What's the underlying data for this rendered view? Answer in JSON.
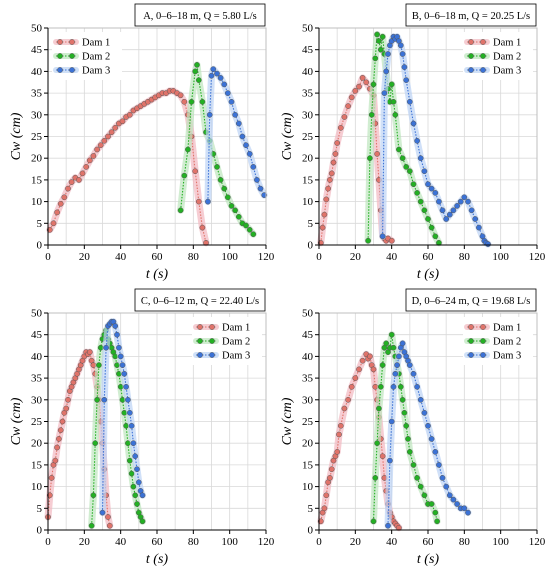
{
  "colors": {
    "Dam 1": "#e0736a",
    "Dam 2": "#23b023",
    "Dam 3": "#3b72d6",
    "grid": "#d9d9d9",
    "axis": "#000000",
    "band_Dam 1": "#f2b8c0",
    "band_Dam 2": "#bde6bd",
    "band_Dam 3": "#bcd3f5"
  },
  "chart_data": [
    {
      "type": "scatter",
      "title": "A, 0–6–18 m, Q = 5.80 L/s",
      "xlabel": "t (s)",
      "ylabel": "Cw (cm)",
      "xlim": [
        0,
        120
      ],
      "ylim": [
        0,
        50
      ],
      "xticks": [
        0,
        20,
        40,
        60,
        80,
        100,
        120
      ],
      "yticks": [
        0,
        5,
        10,
        15,
        20,
        25,
        30,
        35,
        40,
        45,
        50
      ],
      "grid": true,
      "legend": "top-left",
      "series": [
        {
          "name": "Dam 1",
          "x": [
            1,
            3,
            5,
            7,
            9,
            11,
            13,
            15,
            17,
            19,
            21,
            23,
            25,
            27,
            29,
            31,
            33,
            35,
            37,
            39,
            41,
            43,
            45,
            47,
            49,
            51,
            53,
            55,
            57,
            59,
            61,
            63,
            65,
            67,
            69,
            71,
            73,
            75,
            77,
            79,
            81,
            83,
            85,
            87
          ],
          "y": [
            3.5,
            5,
            7.5,
            9.5,
            11,
            13,
            14.5,
            15.5,
            15,
            16.5,
            18,
            19.5,
            20.5,
            22,
            23,
            24,
            25,
            26,
            27,
            28,
            28.5,
            29.5,
            30,
            31,
            31.5,
            32,
            32.5,
            33,
            33.5,
            34,
            34.5,
            35,
            35,
            35.5,
            35.5,
            35,
            34.5,
            33,
            30,
            25,
            17,
            10,
            4,
            0.5
          ]
        },
        {
          "name": "Dam 2",
          "x": [
            73,
            75,
            77,
            79,
            81,
            82,
            83,
            85,
            87,
            89,
            91,
            93,
            95,
            97,
            99,
            101,
            103,
            105,
            107,
            109,
            111,
            113
          ],
          "y": [
            8,
            16,
            22,
            33,
            40,
            41.5,
            38,
            33,
            26,
            24,
            21,
            18,
            15,
            13,
            11,
            9,
            8,
            6.5,
            5,
            4.5,
            3.5,
            2.5
          ]
        },
        {
          "name": "Dam 3",
          "x": [
            88,
            89,
            90,
            91,
            93,
            95,
            97,
            99,
            101,
            103,
            105,
            107,
            109,
            111,
            113,
            115,
            117,
            119
          ],
          "y": [
            10,
            30,
            39,
            40.5,
            39.5,
            38.5,
            37,
            35,
            33,
            30,
            28,
            25,
            23,
            21,
            18,
            15,
            13,
            11.5
          ]
        }
      ]
    },
    {
      "type": "scatter",
      "title": "B, 0–6–18 m, Q = 20.25 L/s",
      "xlabel": "t (s)",
      "ylabel": "Cw (cm)",
      "xlim": [
        0,
        120
      ],
      "ylim": [
        0,
        50
      ],
      "xticks": [
        0,
        20,
        40,
        60,
        80,
        100,
        120
      ],
      "yticks": [
        0,
        5,
        10,
        15,
        20,
        25,
        30,
        35,
        40,
        45,
        50
      ],
      "grid": true,
      "legend": "top-right",
      "series": [
        {
          "name": "Dam 1",
          "x": [
            1,
            2,
            3,
            4,
            5,
            6,
            7,
            8,
            9,
            10,
            12,
            14,
            16,
            18,
            20,
            22,
            24,
            26,
            28,
            30,
            31,
            32,
            33,
            34,
            35,
            36,
            37,
            38,
            40
          ],
          "y": [
            0.5,
            4,
            7,
            10.5,
            13,
            15,
            16.5,
            19,
            21,
            23.5,
            27,
            29.5,
            32,
            34,
            35.5,
            36.5,
            38.5,
            37.5,
            36,
            34.5,
            28,
            21,
            15,
            8,
            2,
            1.5,
            1,
            1.5,
            1
          ]
        },
        {
          "name": "Dam 2",
          "x": [
            27,
            28,
            29,
            30,
            31,
            32,
            33,
            34,
            35,
            36,
            37,
            38,
            39,
            40,
            41,
            42,
            44,
            46,
            48,
            50,
            52,
            54,
            56,
            58,
            60,
            62,
            64,
            66
          ],
          "y": [
            1,
            20,
            30,
            37,
            43,
            48.5,
            47,
            45,
            48,
            44,
            40,
            36,
            33,
            37,
            33,
            30,
            22,
            20,
            18,
            17,
            14,
            12,
            10,
            8,
            6,
            4,
            2,
            0.5
          ]
        },
        {
          "name": "Dam 3",
          "x": [
            35,
            36,
            37,
            38,
            39,
            40,
            41,
            42,
            43,
            44,
            45,
            46,
            47,
            48,
            50,
            52,
            54,
            56,
            58,
            60,
            62,
            64,
            66,
            68,
            70,
            72,
            74,
            76,
            78,
            80,
            82,
            84,
            86,
            88,
            90,
            91,
            92,
            93
          ],
          "y": [
            2,
            35,
            40,
            44,
            46,
            47,
            48,
            47.5,
            48,
            47,
            46,
            44,
            41,
            38,
            33,
            28,
            24,
            20,
            17,
            14,
            13,
            12,
            10,
            8,
            6,
            7,
            8,
            9,
            10,
            11,
            10,
            8,
            6,
            4,
            2,
            1,
            0.5,
            0.2
          ]
        }
      ]
    },
    {
      "type": "scatter",
      "title": "C, 0–6–12 m, Q = 22.40 L/s",
      "xlabel": "t (s)",
      "ylabel": "Cw (cm)",
      "xlim": [
        0,
        120
      ],
      "ylim": [
        0,
        50
      ],
      "xticks": [
        0,
        20,
        40,
        60,
        80,
        100,
        120
      ],
      "yticks": [
        0,
        5,
        10,
        15,
        20,
        25,
        30,
        35,
        40,
        45,
        50
      ],
      "grid": true,
      "legend": "top-right",
      "series": [
        {
          "name": "Dam 1",
          "x": [
            0,
            1,
            2,
            3,
            4,
            5,
            6,
            7,
            8,
            9,
            10,
            11,
            12,
            13,
            14,
            15,
            16,
            17,
            18,
            19,
            20,
            21,
            22,
            23,
            24,
            25,
            26,
            27,
            28,
            29,
            30,
            31,
            32,
            33,
            34
          ],
          "y": [
            3,
            8,
            12,
            15,
            16,
            19,
            21,
            23,
            25,
            27,
            28,
            30,
            32,
            33,
            34,
            35,
            36,
            37,
            38,
            39,
            40,
            41,
            40.5,
            41,
            39,
            38,
            36,
            33,
            30,
            25,
            20,
            14,
            8,
            3,
            1
          ]
        },
        {
          "name": "Dam 2",
          "x": [
            24,
            25,
            26,
            27,
            28,
            29,
            30,
            31,
            32,
            33,
            34,
            35,
            36,
            37,
            38,
            39,
            40,
            41,
            42,
            43,
            44,
            45,
            46,
            47,
            48,
            49,
            50,
            51,
            52
          ],
          "y": [
            1,
            8,
            20,
            30,
            38,
            42,
            44,
            45,
            46,
            44,
            43,
            42,
            41,
            40,
            38,
            36,
            33,
            30,
            27,
            24,
            20,
            16,
            13,
            10,
            8,
            6,
            4,
            3,
            2
          ]
        },
        {
          "name": "Dam 3",
          "x": [
            30,
            31,
            32,
            33,
            34,
            35,
            36,
            37,
            38,
            39,
            40,
            41,
            42,
            43,
            44,
            45,
            46,
            47,
            48,
            49,
            50,
            51,
            52
          ],
          "y": [
            4,
            30,
            42,
            47,
            47.5,
            48,
            48,
            47,
            45,
            42,
            40,
            38,
            36,
            33,
            30,
            27,
            24,
            20,
            17,
            14,
            11,
            9,
            8
          ]
        }
      ]
    },
    {
      "type": "scatter",
      "title": "D, 0–6–24 m, Q = 19.68 L/s",
      "xlabel": "t (s)",
      "ylabel": "Cw (cm)",
      "xlim": [
        0,
        120
      ],
      "ylim": [
        0,
        50
      ],
      "xticks": [
        0,
        20,
        40,
        60,
        80,
        100,
        120
      ],
      "yticks": [
        0,
        5,
        10,
        15,
        20,
        25,
        30,
        35,
        40,
        45,
        50
      ],
      "grid": true,
      "legend": "top-right",
      "series": [
        {
          "name": "Dam 1",
          "x": [
            1,
            2,
            3,
            4,
            5,
            6,
            7,
            8,
            9,
            10,
            11,
            12,
            14,
            16,
            18,
            20,
            22,
            24,
            26,
            27,
            28,
            29,
            30,
            31,
            32,
            33,
            34,
            35,
            36,
            37,
            38,
            39,
            40,
            41,
            42,
            43,
            44
          ],
          "y": [
            2,
            4,
            5,
            8,
            11,
            12,
            14,
            16,
            17,
            18,
            22,
            24,
            28,
            30,
            33,
            35,
            37,
            39,
            40.5,
            39.5,
            40,
            38,
            37,
            33,
            30,
            26,
            21,
            17,
            12,
            9,
            6,
            4,
            3,
            2,
            1.5,
            1,
            0.5
          ]
        },
        {
          "name": "Dam 2",
          "x": [
            30,
            31,
            32,
            33,
            34,
            35,
            36,
            37,
            38,
            39,
            40,
            41,
            42,
            43,
            44,
            45,
            46,
            47,
            48,
            49,
            50,
            52,
            54,
            56,
            58,
            60,
            62,
            64,
            65
          ],
          "y": [
            2,
            12,
            20,
            28,
            33,
            38,
            42,
            43,
            41,
            42,
            45,
            42,
            40,
            38,
            36,
            33,
            30,
            27,
            24,
            21,
            18,
            15,
            12,
            10,
            8,
            6,
            6,
            4,
            2
          ]
        },
        {
          "name": "Dam 3",
          "x": [
            38,
            39,
            40,
            41,
            42,
            43,
            44,
            45,
            46,
            47,
            48,
            49,
            50,
            52,
            54,
            56,
            58,
            60,
            62,
            64,
            66,
            68,
            70,
            72,
            74,
            76,
            78,
            80,
            82
          ],
          "y": [
            1,
            16,
            25,
            33,
            36,
            38,
            40,
            42,
            43,
            41,
            40,
            39,
            38,
            36,
            33,
            30,
            27,
            24,
            21,
            18,
            15,
            12,
            10,
            8,
            7,
            6,
            5,
            5,
            4
          ]
        }
      ]
    }
  ]
}
